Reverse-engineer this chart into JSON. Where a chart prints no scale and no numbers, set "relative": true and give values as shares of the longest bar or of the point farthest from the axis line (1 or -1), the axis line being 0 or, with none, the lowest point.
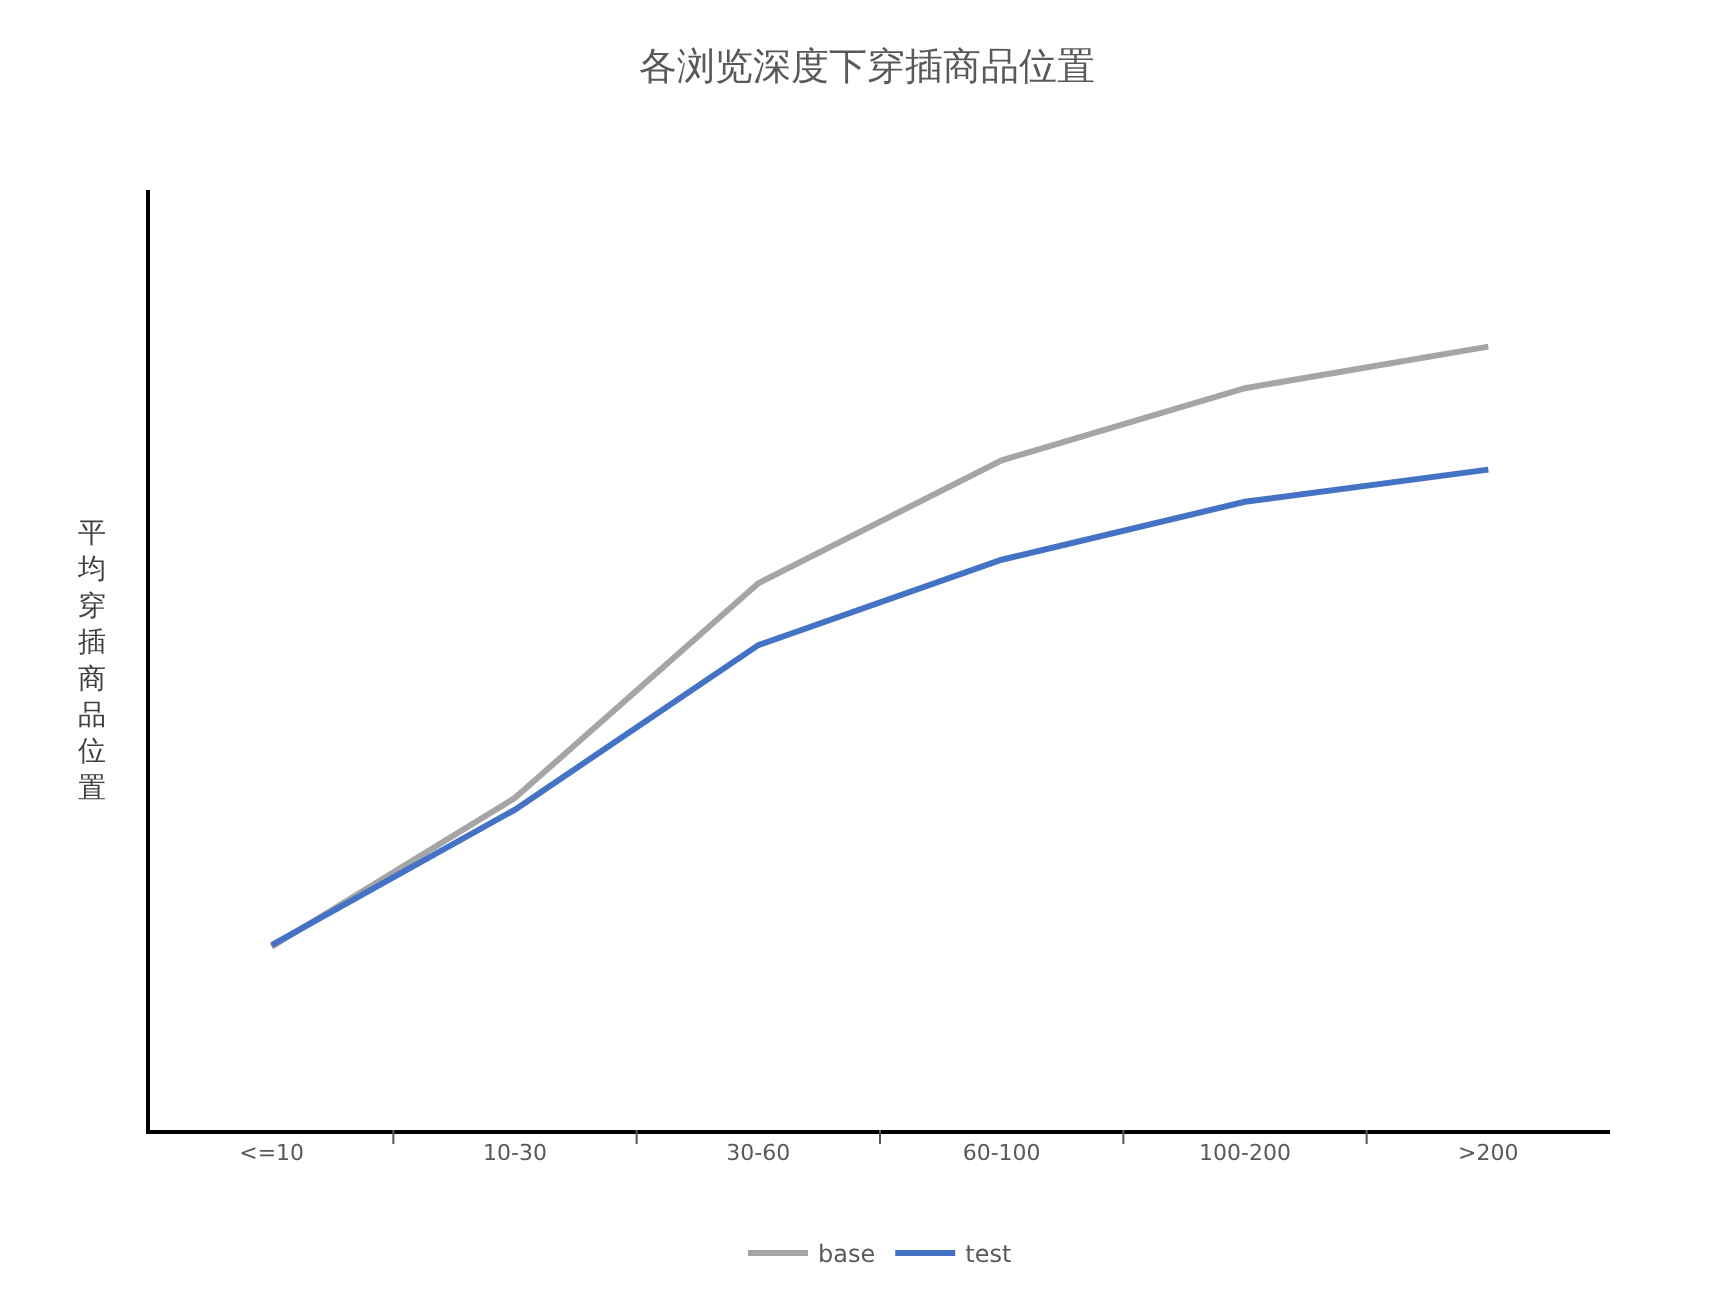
{
  "chart_data": {
    "type": "line",
    "title": "各浏览深度下穿插商品位置",
    "ylabel": "平均穿插商品位置",
    "relative": true,
    "categories": [
      "<=10",
      "10-30",
      "30-60",
      "60-100",
      "100-200",
      ">200"
    ],
    "series": [
      {
        "name": "base",
        "color": "#a5a5a5",
        "values": [
          0.234,
          0.424,
          0.698,
          0.855,
          0.947,
          1.0
        ]
      },
      {
        "name": "test",
        "color": "#4472c4",
        "values": [
          0.236,
          0.409,
          0.619,
          0.728,
          0.802,
          0.843
        ]
      }
    ],
    "legend": "bottom",
    "marker": "none",
    "line_style": "solid"
  }
}
